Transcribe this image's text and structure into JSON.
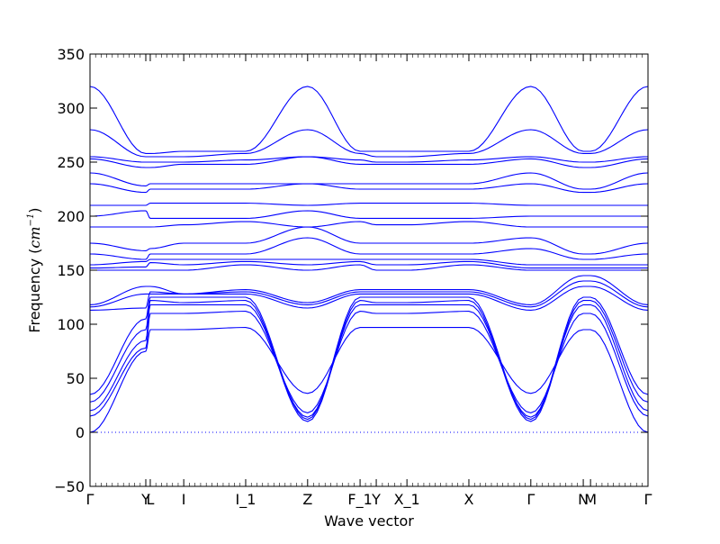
{
  "chart_data": {
    "type": "line",
    "title": "",
    "xlabel": "Wave vector",
    "ylabel": "Frequency (cm⁻¹)",
    "ylabel_parts": {
      "main": "Frequency (",
      "unit": "cm",
      "exp": "−1",
      "close": ")"
    },
    "ylim": [
      -50,
      350
    ],
    "xlim": [
      0,
      1
    ],
    "y_ticks": [
      -50,
      0,
      50,
      100,
      150,
      200,
      250,
      300,
      350
    ],
    "y_tick_labels": [
      "−50",
      "0",
      "50",
      "100",
      "150",
      "200",
      "250",
      "300",
      "350"
    ],
    "x_ticks": [
      {
        "label": "Γ",
        "x": 0.0
      },
      {
        "label": "Y",
        "x": 0.1
      },
      {
        "label": "L",
        "x": 0.108
      },
      {
        "label": "I",
        "x": 0.168
      },
      {
        "label": "I_1",
        "x": 0.279
      },
      {
        "label": "Z",
        "x": 0.39
      },
      {
        "label": "F_1",
        "x": 0.484
      },
      {
        "label": "Y",
        "x": 0.513
      },
      {
        "label": "X_1",
        "x": 0.568
      },
      {
        "label": "X",
        "x": 0.679
      },
      {
        "label": "Γ",
        "x": 0.79
      },
      {
        "label": "N",
        "x": 0.884
      },
      {
        "label": "M",
        "x": 0.897
      },
      {
        "label": "Γ",
        "x": 1.0
      }
    ],
    "zero_line": {
      "y": 0,
      "style": "dotted"
    },
    "grid": false,
    "legend": "none",
    "colors": {
      "bands": "#0000ff",
      "axes": "#000000",
      "background": "#ffffff"
    },
    "bands": [
      [
        0,
        75,
        95,
        95,
        97,
        36,
        97,
        97,
        97,
        97,
        36,
        95,
        95,
        0
      ],
      [
        15,
        78,
        110,
        110,
        112,
        18,
        112,
        110,
        110,
        112,
        18,
        110,
        110,
        15
      ],
      [
        20,
        85,
        118,
        118,
        118,
        14,
        118,
        118,
        118,
        118,
        14,
        118,
        118,
        20
      ],
      [
        28,
        95,
        122,
        120,
        122,
        10,
        122,
        120,
        120,
        122,
        10,
        122,
        122,
        28
      ],
      [
        35,
        105,
        125,
        125,
        125,
        12,
        125,
        125,
        125,
        125,
        12,
        125,
        125,
        35
      ],
      [
        113,
        115,
        130,
        128,
        128,
        115,
        128,
        128,
        128,
        128,
        113,
        135,
        135,
        113
      ],
      [
        116,
        128,
        128,
        128,
        130,
        118,
        130,
        130,
        130,
        130,
        116,
        140,
        140,
        116
      ],
      [
        118,
        135,
        135,
        128,
        132,
        120,
        132,
        132,
        132,
        132,
        118,
        145,
        145,
        118
      ],
      [
        150,
        150,
        150,
        150,
        155,
        150,
        155,
        150,
        150,
        155,
        150,
        150,
        150,
        150
      ],
      [
        152,
        153,
        157,
        155,
        158,
        155,
        158,
        155,
        155,
        158,
        152,
        152,
        152,
        152
      ],
      [
        155,
        158,
        160,
        160,
        160,
        160,
        160,
        160,
        160,
        160,
        155,
        155,
        155,
        155
      ],
      [
        165,
        160,
        165,
        165,
        165,
        180,
        165,
        165,
        165,
        165,
        170,
        160,
        160,
        165
      ],
      [
        175,
        168,
        170,
        175,
        175,
        190,
        175,
        175,
        175,
        175,
        180,
        165,
        165,
        175
      ],
      [
        190,
        190,
        190,
        192,
        195,
        190,
        195,
        192,
        192,
        195,
        190,
        190,
        190,
        190
      ],
      [
        200,
        205,
        198,
        198,
        198,
        205,
        198,
        198,
        198,
        198,
        200,
        200,
        200,
        200
      ],
      [
        210,
        210,
        212,
        212,
        212,
        210,
        212,
        212,
        212,
        212,
        210,
        210,
        210,
        210
      ],
      [
        230,
        222,
        225,
        225,
        225,
        230,
        225,
        225,
        225,
        225,
        230,
        222,
        222,
        230
      ],
      [
        240,
        228,
        230,
        230,
        230,
        230,
        230,
        230,
        230,
        230,
        240,
        225,
        225,
        240
      ],
      [
        253,
        245,
        245,
        248,
        248,
        255,
        248,
        248,
        248,
        248,
        253,
        245,
        245,
        253
      ],
      [
        255,
        250,
        250,
        250,
        252,
        255,
        252,
        250,
        250,
        252,
        255,
        250,
        250,
        255
      ],
      [
        280,
        255,
        255,
        255,
        258,
        280,
        258,
        255,
        255,
        258,
        280,
        258,
        258,
        280
      ],
      [
        320,
        258,
        258,
        260,
        260,
        320,
        260,
        260,
        260,
        260,
        320,
        260,
        260,
        320
      ]
    ]
  }
}
